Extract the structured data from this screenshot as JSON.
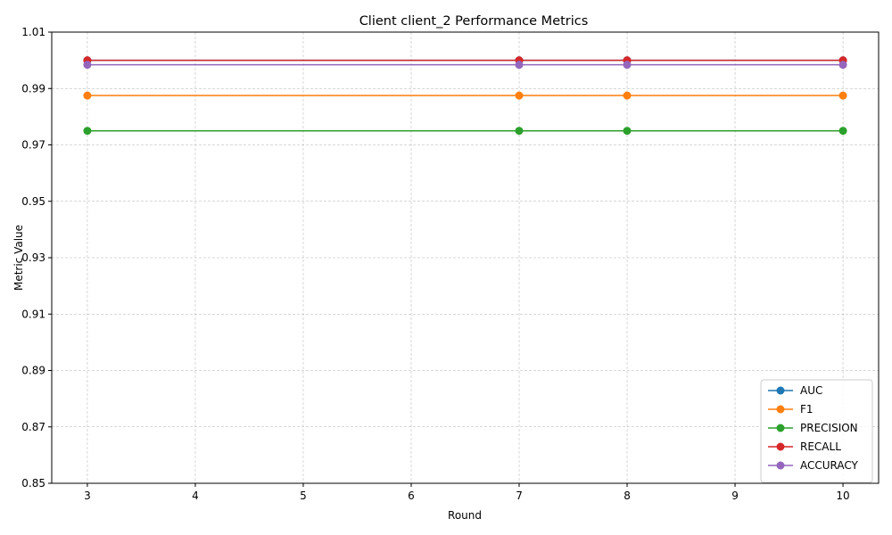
{
  "chart_data": {
    "type": "line",
    "title": "Client client_2 Performance Metrics",
    "xlabel": "Round",
    "ylabel": "Metric Value",
    "x": [
      3,
      7,
      8,
      10
    ],
    "xlim": [
      2.67,
      10.33
    ],
    "ylim": [
      0.85,
      1.01
    ],
    "xticks": [
      3,
      4,
      5,
      6,
      7,
      8,
      9,
      10
    ],
    "yticks": [
      0.85,
      0.87,
      0.89,
      0.91,
      0.93,
      0.95,
      0.97,
      0.99,
      1.01
    ],
    "ytick_labels": [
      "0.85",
      "0.87",
      "0.89",
      "0.91",
      "0.93",
      "0.95",
      "0.97",
      "0.99",
      "1.01"
    ],
    "grid": true,
    "legend_position": "bottom-right",
    "series": [
      {
        "name": "AUC",
        "color": "#1f77b4",
        "values": [
          1.0,
          1.0,
          1.0,
          1.0
        ]
      },
      {
        "name": "F1",
        "color": "#ff7f0e",
        "values": [
          0.9875,
          0.9875,
          0.9875,
          0.9875
        ]
      },
      {
        "name": "PRECISION",
        "color": "#2ca02c",
        "values": [
          0.975,
          0.975,
          0.975,
          0.975
        ]
      },
      {
        "name": "RECALL",
        "color": "#d62728",
        "values": [
          1.0,
          1.0,
          1.0,
          1.0
        ]
      },
      {
        "name": "ACCURACY",
        "color": "#9467bd",
        "values": [
          0.9984,
          0.9984,
          0.9984,
          0.9984
        ]
      }
    ]
  }
}
